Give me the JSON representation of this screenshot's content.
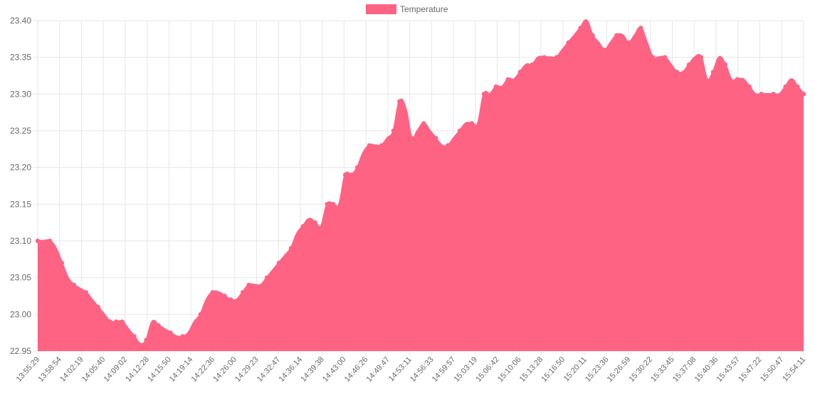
{
  "chart_data": {
    "type": "area",
    "series": [
      {
        "name": "Temperature",
        "color": "#ff6384",
        "values": [
          23.1,
          23.1,
          23.1,
          23.09,
          23.07,
          23.05,
          23.04,
          23.035,
          23.03,
          23.02,
          23.01,
          23.0,
          22.99,
          22.99,
          22.99,
          22.98,
          22.97,
          22.96,
          22.965,
          22.99,
          22.985,
          22.98,
          22.975,
          22.97,
          22.97,
          22.975,
          22.99,
          23.0,
          23.02,
          23.03,
          23.03,
          23.025,
          23.02,
          23.02,
          23.03,
          23.04,
          23.04,
          23.04,
          23.05,
          23.06,
          23.07,
          23.08,
          23.09,
          23.11,
          23.12,
          23.13,
          23.125,
          23.12,
          23.15,
          23.15,
          23.15,
          23.19,
          23.19,
          23.2,
          23.22,
          23.23,
          23.23,
          23.23,
          23.24,
          23.25,
          23.29,
          23.28,
          23.24,
          23.25,
          23.26,
          23.25,
          23.24,
          23.23,
          23.23,
          23.24,
          23.25,
          23.26,
          23.26,
          23.26,
          23.3,
          23.3,
          23.31,
          23.31,
          23.32,
          23.32,
          23.33,
          23.34,
          23.34,
          23.35,
          23.35,
          23.35,
          23.35,
          23.36,
          23.37,
          23.38,
          23.39,
          23.4,
          23.38,
          23.37,
          23.36,
          23.37,
          23.38,
          23.38,
          23.37,
          23.38,
          23.39,
          23.37,
          23.35,
          23.35,
          23.35,
          23.34,
          23.33,
          23.33,
          23.34,
          23.35,
          23.35,
          23.32,
          23.33,
          23.35,
          23.34,
          23.32,
          23.32,
          23.32,
          23.31,
          23.3,
          23.3,
          23.3,
          23.3,
          23.3,
          23.31,
          23.32,
          23.31,
          23.3
        ]
      }
    ],
    "x_tick_labels": [
      "13:55:29",
      "13:58:54",
      "14:02:19",
      "14:05:40",
      "14:09:02",
      "14:12:28",
      "14:15:50",
      "14:19:14",
      "14:22:36",
      "14:26:00",
      "14:29:23",
      "14:32:47",
      "14:36:14",
      "14:39:38",
      "14:43:00",
      "14:46:26",
      "14:49:47",
      "14:53:11",
      "14:56:33",
      "14:59:57",
      "15:03:19",
      "15:06:42",
      "15:10:06",
      "15:13:28",
      "15:16:50",
      "15:20:11",
      "15:23:36",
      "15:26:59",
      "15:30:22",
      "15:33:45",
      "15:37:08",
      "15:40:36",
      "15:43:57",
      "15:47:22",
      "15:50:47",
      "15:54:11"
    ],
    "y_tick_labels": [
      "23.40",
      "23.35",
      "23.30",
      "23.25",
      "23.20",
      "23.15",
      "23.10",
      "23.05",
      "23.00",
      "22.95"
    ],
    "ylim": [
      22.95,
      23.4
    ],
    "legend_position": "top",
    "grid": true,
    "point_markers_shown_at": [
      0,
      2,
      4,
      6,
      8,
      10,
      12,
      13,
      14,
      16,
      18,
      20,
      22,
      24,
      27,
      29,
      31,
      32,
      34,
      35,
      38,
      40,
      42,
      44,
      46,
      48,
      49,
      51,
      52,
      53,
      55,
      57,
      59,
      60,
      62,
      64,
      66,
      68,
      70,
      72,
      74,
      76,
      78,
      80,
      82,
      84,
      86,
      88,
      90,
      92,
      94,
      96,
      98,
      100,
      102,
      104,
      106,
      108,
      110,
      112,
      114,
      116,
      118,
      120,
      122,
      124,
      126,
      127
    ]
  }
}
